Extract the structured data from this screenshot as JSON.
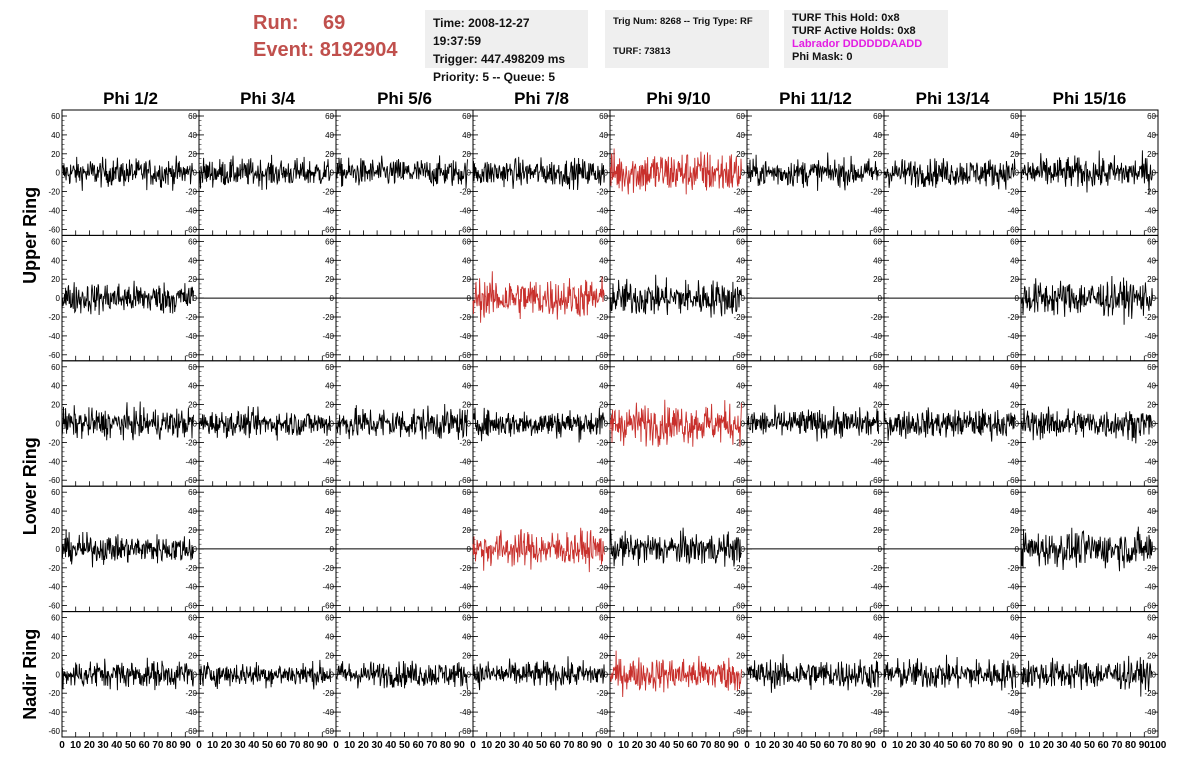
{
  "header": {
    "run_label": "Run:",
    "run_value": "69",
    "event_label": "Event:",
    "event_value": "8192904"
  },
  "time_box": {
    "time": "Time: 2008-12-27 19:37:59",
    "trigger": "Trigger: 447.498209 ms",
    "priority": "Priority: 5 -- Queue: 5"
  },
  "trig_box": {
    "trig": "Trig Num: 8268 -- Trig Type: RF",
    "turf": "TURF: 73813"
  },
  "turf_box": {
    "this_hold": "TURF This Hold: 0x8",
    "active_holds": "TURF Active Holds: 0x8",
    "labrador": "Labrador DDDDDDAADD",
    "phi_mask": "Phi Mask: 0"
  },
  "colors": {
    "header_red": "#c0504d",
    "labrador_magenta": "#e31de3",
    "trace_black": "#000000",
    "trace_red": "#c8302c",
    "info_bg": "#efefef"
  },
  "chart_data": {
    "type": "line",
    "columns": [
      "Phi 1/2",
      "Phi 3/4",
      "Phi 5/6",
      "Phi 7/8",
      "Phi 9/10",
      "Phi 11/12",
      "Phi 13/14",
      "Phi 15/16"
    ],
    "rings": [
      "Upper Ring",
      "Lower Ring",
      "Nadir Ring"
    ],
    "ylim": [
      -60,
      60
    ],
    "yticks": [
      "60",
      "40",
      "20",
      "0",
      "-20",
      "-40",
      "-60"
    ],
    "xlim": [
      0,
      100
    ],
    "xticks": [
      "0",
      "10",
      "20",
      "30",
      "40",
      "50",
      "60",
      "70",
      "80",
      "90",
      "100"
    ],
    "rows": [
      {
        "ring": "Upper Ring",
        "panels": [
          {
            "col": "Phi 1/2",
            "trace": "noise",
            "amplitude": 14,
            "color": "black"
          },
          {
            "col": "Phi 3/4",
            "trace": "noise",
            "amplitude": 14,
            "color": "black"
          },
          {
            "col": "Phi 5/6",
            "trace": "noise",
            "amplitude": 14,
            "color": "black"
          },
          {
            "col": "Phi 7/8",
            "trace": "noise",
            "amplitude": 14,
            "color": "black"
          },
          {
            "col": "Phi 9/10",
            "trace": "noise",
            "amplitude": 22,
            "color": "red"
          },
          {
            "col": "Phi 11/12",
            "trace": "noise",
            "amplitude": 14,
            "color": "black"
          },
          {
            "col": "Phi 13/14",
            "trace": "noise",
            "amplitude": 14,
            "color": "black"
          },
          {
            "col": "Phi 15/16",
            "trace": "noise",
            "amplitude": 16,
            "color": "black"
          }
        ]
      },
      {
        "ring": "Upper Ring",
        "panels": [
          {
            "col": "Phi 1/2",
            "trace": "noise",
            "amplitude": 16,
            "color": "black"
          },
          {
            "col": "Phi 3/4",
            "trace": "flat",
            "amplitude": 0,
            "color": "black"
          },
          {
            "col": "Phi 5/6",
            "trace": "flat",
            "amplitude": 0,
            "color": "black"
          },
          {
            "col": "Phi 7/8",
            "trace": "noise",
            "amplitude": 20,
            "color": "red"
          },
          {
            "col": "Phi 9/10",
            "trace": "noise",
            "amplitude": 18,
            "color": "black"
          },
          {
            "col": "Phi 11/12",
            "trace": "flat",
            "amplitude": 0,
            "color": "black"
          },
          {
            "col": "Phi 13/14",
            "trace": "flat",
            "amplitude": 0,
            "color": "black"
          },
          {
            "col": "Phi 15/16",
            "trace": "noise",
            "amplitude": 18,
            "color": "black"
          }
        ]
      },
      {
        "ring": "Lower Ring",
        "panels": [
          {
            "col": "Phi 1/2",
            "trace": "noise",
            "amplitude": 15,
            "color": "black"
          },
          {
            "col": "Phi 3/4",
            "trace": "noise",
            "amplitude": 13,
            "color": "black"
          },
          {
            "col": "Phi 5/6",
            "trace": "noise",
            "amplitude": 16,
            "color": "black"
          },
          {
            "col": "Phi 7/8",
            "trace": "noise",
            "amplitude": 14,
            "color": "black"
          },
          {
            "col": "Phi 9/10",
            "trace": "noise",
            "amplitude": 20,
            "color": "red"
          },
          {
            "col": "Phi 11/12",
            "trace": "noise",
            "amplitude": 14,
            "color": "black"
          },
          {
            "col": "Phi 13/14",
            "trace": "noise",
            "amplitude": 14,
            "color": "black"
          },
          {
            "col": "Phi 15/16",
            "trace": "noise",
            "amplitude": 15,
            "color": "black"
          }
        ]
      },
      {
        "ring": "Lower Ring",
        "panels": [
          {
            "col": "Phi 1/2",
            "trace": "noise",
            "amplitude": 14,
            "color": "black"
          },
          {
            "col": "Phi 3/4",
            "trace": "flat",
            "amplitude": 0,
            "color": "black"
          },
          {
            "col": "Phi 5/6",
            "trace": "flat",
            "amplitude": 0,
            "color": "black"
          },
          {
            "col": "Phi 7/8",
            "trace": "noise",
            "amplitude": 18,
            "color": "red"
          },
          {
            "col": "Phi 9/10",
            "trace": "noise",
            "amplitude": 16,
            "color": "black"
          },
          {
            "col": "Phi 11/12",
            "trace": "flat",
            "amplitude": 0,
            "color": "black"
          },
          {
            "col": "Phi 13/14",
            "trace": "flat",
            "amplitude": 0,
            "color": "black"
          },
          {
            "col": "Phi 15/16",
            "trace": "noise",
            "amplitude": 18,
            "color": "black"
          }
        ]
      },
      {
        "ring": "Nadir Ring",
        "panels": [
          {
            "col": "Phi 1/2",
            "trace": "noise",
            "amplitude": 14,
            "color": "black"
          },
          {
            "col": "Phi 3/4",
            "trace": "noise",
            "amplitude": 12,
            "color": "black"
          },
          {
            "col": "Phi 5/6",
            "trace": "noise",
            "amplitude": 13,
            "color": "black"
          },
          {
            "col": "Phi 7/8",
            "trace": "noise",
            "amplitude": 13,
            "color": "black"
          },
          {
            "col": "Phi 9/10",
            "trace": "noise",
            "amplitude": 17,
            "color": "red"
          },
          {
            "col": "Phi 11/12",
            "trace": "noise",
            "amplitude": 15,
            "color": "black"
          },
          {
            "col": "Phi 13/14",
            "trace": "noise",
            "amplitude": 15,
            "color": "black"
          },
          {
            "col": "Phi 15/16",
            "trace": "noise",
            "amplitude": 15,
            "color": "black"
          }
        ]
      }
    ]
  }
}
